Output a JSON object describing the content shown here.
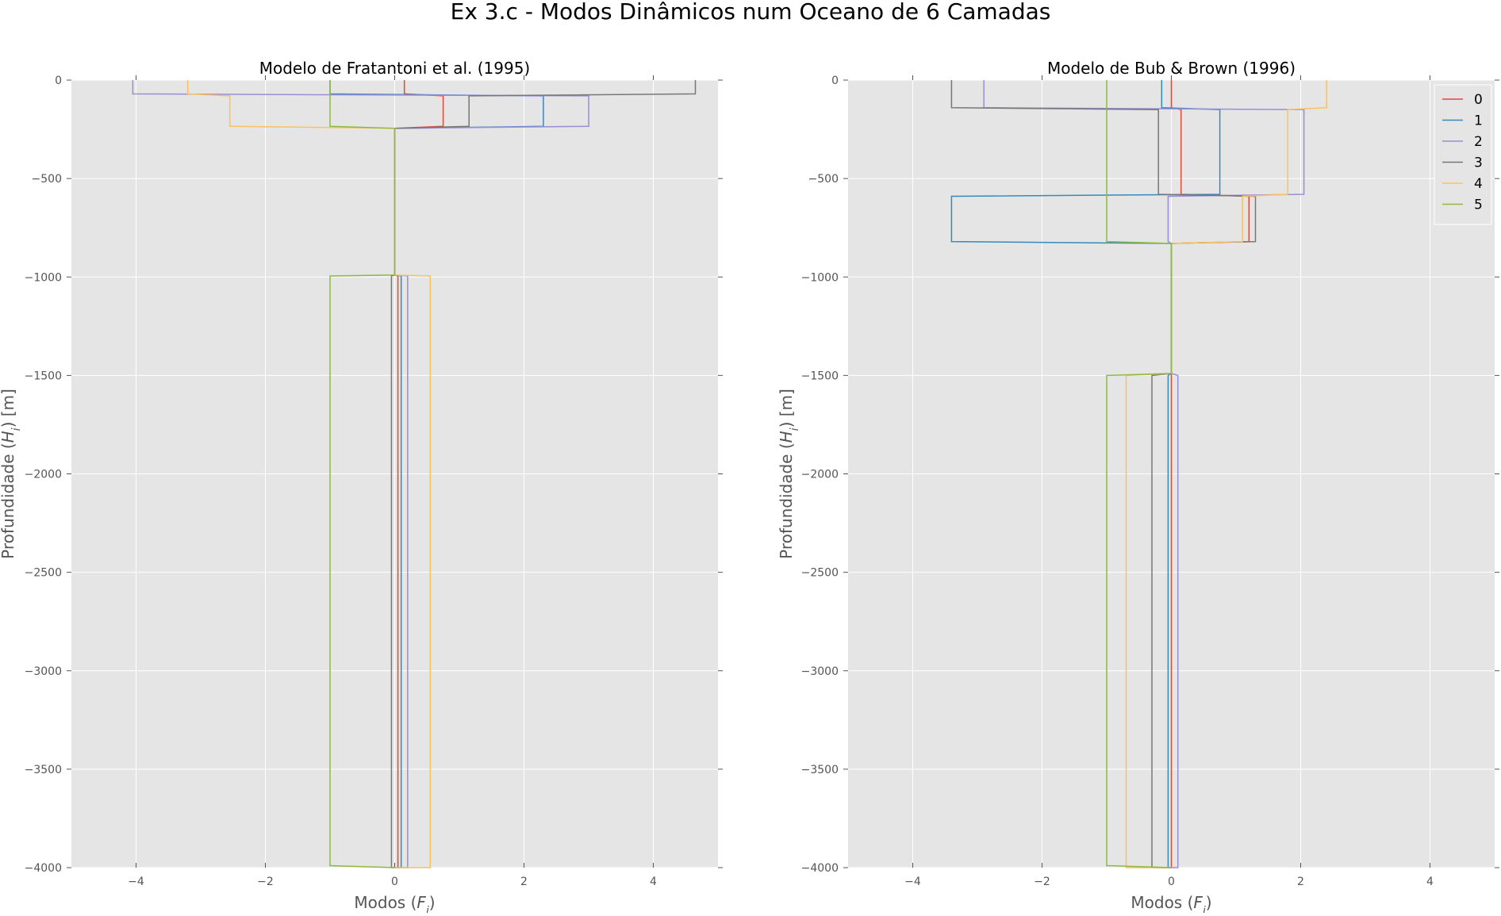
{
  "figure": {
    "title": "Ex 3.c - Modos Dinâmicos num Oceano de 6 Camadas"
  },
  "colors": {
    "plot_background": "#e5e5e5",
    "grid": "#ffffff",
    "tick_text": "#555555",
    "series": [
      "#e24a33",
      "#348abd",
      "#988ed5",
      "#777777",
      "#fbc15e",
      "#8eba42"
    ]
  },
  "chart_data": [
    {
      "type": "line",
      "title": "Modelo de Fratantoni et al. (1995)",
      "xlabel": "Modos (F_j)",
      "ylabel": "Profundidade (H_i) [m]",
      "xlim": [
        -5,
        5
      ],
      "ylim": [
        -4000,
        0
      ],
      "xticks": [
        -4,
        -2,
        0,
        2,
        4
      ],
      "yticks": [
        0,
        -500,
        -1000,
        -1500,
        -2000,
        -2500,
        -3000,
        -3500,
        -4000
      ],
      "grid": true,
      "legend": null,
      "series": [
        {
          "name": "0",
          "x": [
            0.15,
            0.15,
            0.75,
            0.75,
            0.0,
            0.0,
            0.05,
            0.05,
            0.0
          ],
          "y": [
            0,
            -70,
            -80,
            -235,
            -245,
            -990,
            -995,
            -4000,
            -4000
          ]
        },
        {
          "name": "1",
          "x": [
            -1.0,
            -1.0,
            2.3,
            2.3,
            0.0,
            0.0,
            0.1,
            0.1,
            0.0
          ],
          "y": [
            0,
            -70,
            -80,
            -235,
            -245,
            -990,
            -995,
            -4000,
            -4000
          ]
        },
        {
          "name": "2",
          "x": [
            -4.05,
            -4.05,
            3.0,
            3.0,
            0.0,
            0.0,
            0.2,
            0.2,
            0.0
          ],
          "y": [
            0,
            -70,
            -80,
            -235,
            -245,
            -990,
            -995,
            -4000,
            -4000
          ]
        },
        {
          "name": "3",
          "x": [
            4.65,
            4.65,
            1.15,
            1.15,
            0.0,
            0.0,
            -0.05,
            -0.05,
            0.0
          ],
          "y": [
            0,
            -70,
            -80,
            -235,
            -245,
            -990,
            -995,
            -4000,
            -4000
          ]
        },
        {
          "name": "4",
          "x": [
            -3.2,
            -3.2,
            -2.55,
            -2.55,
            0.0,
            0.0,
            0.55,
            0.55,
            0.0
          ],
          "y": [
            0,
            -70,
            -80,
            -235,
            -245,
            -990,
            -995,
            -4000,
            -4000
          ]
        },
        {
          "name": "5",
          "x": [
            -1.0,
            -1.0,
            -1.0,
            -1.0,
            0.0,
            0.0,
            -1.0,
            -1.0,
            0.0
          ],
          "y": [
            0,
            -70,
            -80,
            -235,
            -245,
            -990,
            -995,
            -3990,
            -4000
          ]
        }
      ]
    },
    {
      "type": "line",
      "title": "Modelo de Bub & Brown (1996)",
      "xlabel": "Modos (F_j)",
      "ylabel": "Profundidade (H_i) [m]",
      "xlim": [
        -5,
        5
      ],
      "ylim": [
        -4000,
        0
      ],
      "xticks": [
        -4,
        -2,
        0,
        2,
        4
      ],
      "yticks": [
        0,
        -500,
        -1000,
        -1500,
        -2000,
        -2500,
        -3000,
        -3500,
        -4000
      ],
      "grid": true,
      "legend": "top-right",
      "series": [
        {
          "name": "0",
          "x": [
            0.0,
            0.0,
            0.15,
            0.15,
            1.2,
            1.2,
            0.0,
            0.0,
            0.0,
            0.0,
            0.0
          ],
          "y": [
            0,
            -140,
            -150,
            -580,
            -590,
            -820,
            -830,
            -1490,
            -1500,
            -4000,
            -4000
          ]
        },
        {
          "name": "1",
          "x": [
            -0.15,
            -0.15,
            0.75,
            0.75,
            -3.4,
            -3.4,
            0.0,
            0.0,
            -0.05,
            -0.05,
            0.0
          ],
          "y": [
            0,
            -140,
            -150,
            -580,
            -590,
            -820,
            -830,
            -1490,
            -1500,
            -4000,
            -4000
          ]
        },
        {
          "name": "2",
          "x": [
            -2.9,
            -2.9,
            2.05,
            2.05,
            -0.05,
            -0.05,
            0.0,
            0.0,
            0.1,
            0.1,
            0.0
          ],
          "y": [
            0,
            -140,
            -150,
            -580,
            -590,
            -820,
            -830,
            -1490,
            -1500,
            -4000,
            -4000
          ]
        },
        {
          "name": "3",
          "x": [
            -3.4,
            -3.4,
            -0.2,
            -0.2,
            1.3,
            1.3,
            0.0,
            0.0,
            -0.3,
            -0.3,
            0.0
          ],
          "y": [
            0,
            -140,
            -150,
            -580,
            -590,
            -820,
            -830,
            -1490,
            -1500,
            -4000,
            -4000
          ]
        },
        {
          "name": "4",
          "x": [
            2.4,
            2.4,
            1.8,
            1.8,
            1.1,
            1.1,
            0.0,
            0.0,
            -0.7,
            -0.7,
            0.0
          ],
          "y": [
            0,
            -140,
            -150,
            -580,
            -590,
            -820,
            -830,
            -1490,
            -1500,
            -4000,
            -4000
          ]
        },
        {
          "name": "5",
          "x": [
            -1.0,
            -1.0,
            -1.0,
            -1.0,
            -1.0,
            -1.0,
            0.0,
            0.0,
            -1.0,
            -1.0,
            0.0
          ],
          "y": [
            0,
            -140,
            -150,
            -580,
            -590,
            -820,
            -830,
            -1490,
            -1500,
            -3990,
            -4000
          ]
        }
      ]
    }
  ]
}
